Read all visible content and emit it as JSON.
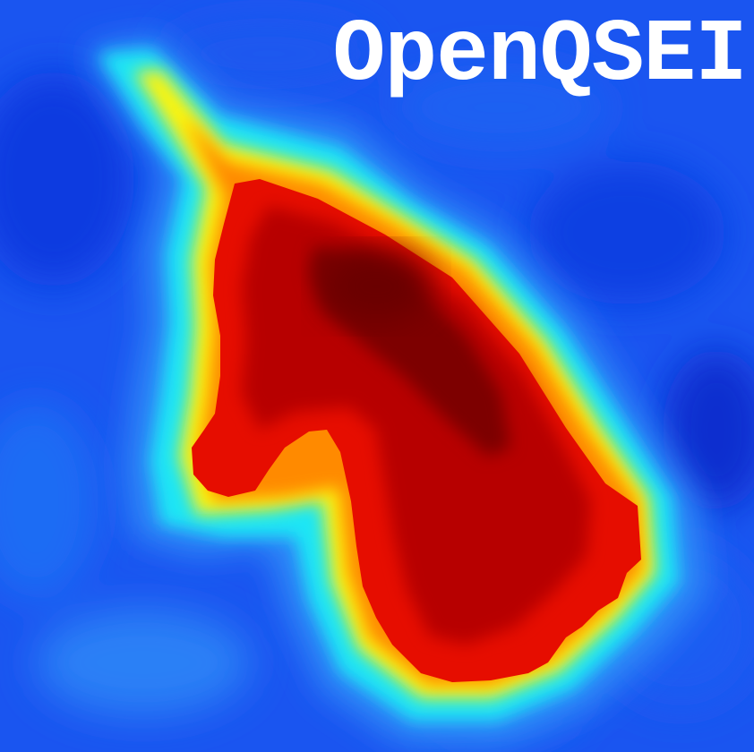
{
  "logo": {
    "title": "OpenQSEI"
  },
  "colors": {
    "background_blue": "#1a55f0",
    "deep_blue": "#0b2fd8",
    "light_blue": "#2f8cf8",
    "cyan": "#1ee6f5",
    "yellow": "#fcf40c",
    "orange": "#ff8a00",
    "red": "#e60d00",
    "dark_red": "#b70000",
    "maroon": "#7d0000",
    "title_text": "#ffffff"
  }
}
